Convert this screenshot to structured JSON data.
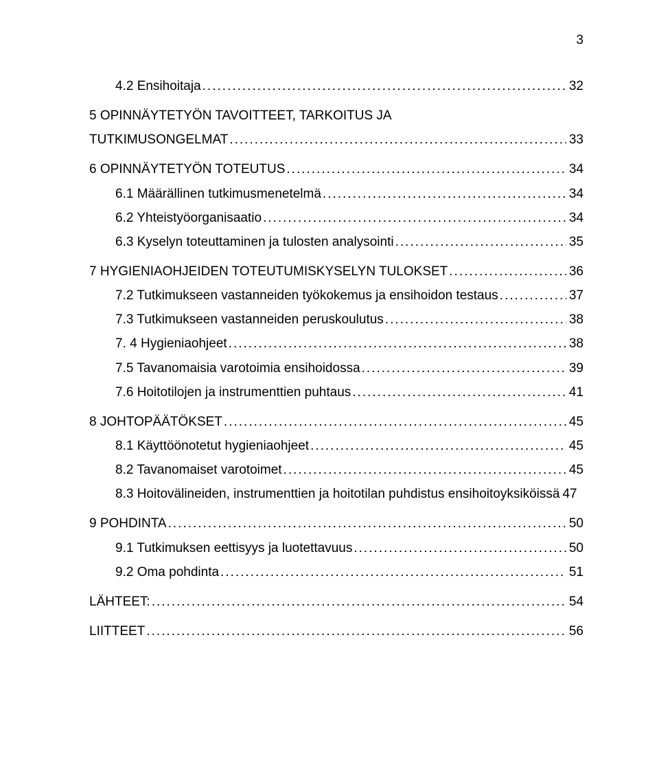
{
  "page_number": "3",
  "entries": [
    {
      "indent": 1,
      "label": "4.2 Ensihoitaja",
      "page": "32",
      "block": false
    },
    {
      "indent": 0,
      "label": "5 OPINNÄYTETYÖN TAVOITTEET, TARKOITUS JA",
      "page": "",
      "block": true,
      "nopage": true
    },
    {
      "indent": 0,
      "label": "TUTKIMUSONGELMAT",
      "page": "33",
      "block": false,
      "continuation": true
    },
    {
      "indent": 0,
      "label": "6 OPINNÄYTETYÖN TOTEUTUS",
      "page": "34",
      "block": true
    },
    {
      "indent": 1,
      "label": "6.1 Määrällinen tutkimusmenetelmä",
      "page": "34",
      "block": false
    },
    {
      "indent": 1,
      "label": "6.2 Yhteistyöorganisaatio",
      "page": "34",
      "block": false
    },
    {
      "indent": 1,
      "label": "6.3 Kyselyn toteuttaminen ja tulosten analysointi",
      "page": "35",
      "block": false
    },
    {
      "indent": 0,
      "label": "7 HYGIENIAOHJEIDEN TOTEUTUMISKYSELYN TULOKSET",
      "page": "36",
      "block": true
    },
    {
      "indent": 1,
      "label": "7.2 Tutkimukseen vastanneiden työkokemus ja ensihoidon testaus",
      "page": "37",
      "block": false
    },
    {
      "indent": 1,
      "label": "7.3 Tutkimukseen vastanneiden peruskoulutus",
      "page": "38",
      "block": false
    },
    {
      "indent": 1,
      "label": "7. 4 Hygieniaohjeet",
      "page": "38",
      "block": false
    },
    {
      "indent": 1,
      "label": "7.5 Tavanomaisia varotoimia ensihoidossa",
      "page": "39",
      "block": false
    },
    {
      "indent": 1,
      "label": "7.6 Hoitotilojen ja instrumenttien puhtaus",
      "page": "41",
      "block": false
    },
    {
      "indent": 0,
      "label": "8 JOHTOPÄÄTÖKSET",
      "page": "45",
      "block": true
    },
    {
      "indent": 1,
      "label": "8.1 Käyttöönotetut hygieniaohjeet",
      "page": "45",
      "block": false
    },
    {
      "indent": 1,
      "label": "8.2 Tavanomaiset varotoimet",
      "page": "45",
      "block": false
    },
    {
      "indent": 1,
      "label": "8.3 Hoitovälineiden, instrumenttien ja hoitotilan puhdistus ensihoitoyksiköissä",
      "page": "47",
      "block": false,
      "noleader": true
    },
    {
      "indent": 0,
      "label": "9 POHDINTA",
      "page": "50",
      "block": true
    },
    {
      "indent": 1,
      "label": "9.1 Tutkimuksen eettisyys ja luotettavuus",
      "page": "50",
      "block": false
    },
    {
      "indent": 1,
      "label": "9.2 Oma pohdinta",
      "page": "51",
      "block": false
    },
    {
      "indent": 0,
      "label": "LÄHTEET:",
      "page": "54",
      "block": true
    },
    {
      "indent": 0,
      "label": "LIITTEET",
      "page": "56",
      "block": true
    }
  ]
}
